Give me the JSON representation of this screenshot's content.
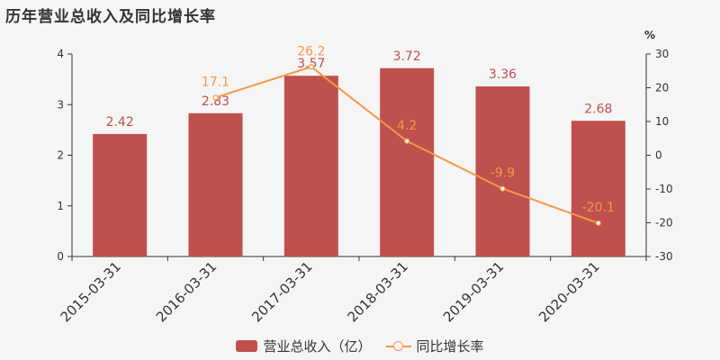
{
  "title": "历年营业总收入及同比增长率",
  "colors": {
    "bar": "#c0504d",
    "line": "#f79646",
    "axis": "#333333"
  },
  "chart_data": {
    "type": "bar+line",
    "categories": [
      "2015-03-31",
      "2016-03-31",
      "2017-03-31",
      "2018-03-31",
      "2019-03-31",
      "2020-03-31"
    ],
    "series": [
      {
        "name": "营业总收入（亿）",
        "type": "bar",
        "axis": "left",
        "values": [
          2.42,
          2.83,
          3.57,
          3.72,
          3.36,
          2.68
        ]
      },
      {
        "name": "同比增长率",
        "type": "line",
        "axis": "right",
        "values": [
          null,
          17.1,
          26.2,
          4.2,
          -9.9,
          -20.1
        ]
      }
    ],
    "left_axis": {
      "min": 0,
      "max": 4,
      "ticks": [
        0,
        1,
        2,
        3,
        4
      ]
    },
    "right_axis": {
      "unit": "%",
      "min": -30,
      "max": 30,
      "ticks": [
        -30,
        -20,
        -10,
        0,
        10,
        20,
        30
      ]
    },
    "legend_position": "bottom",
    "grid": false
  }
}
